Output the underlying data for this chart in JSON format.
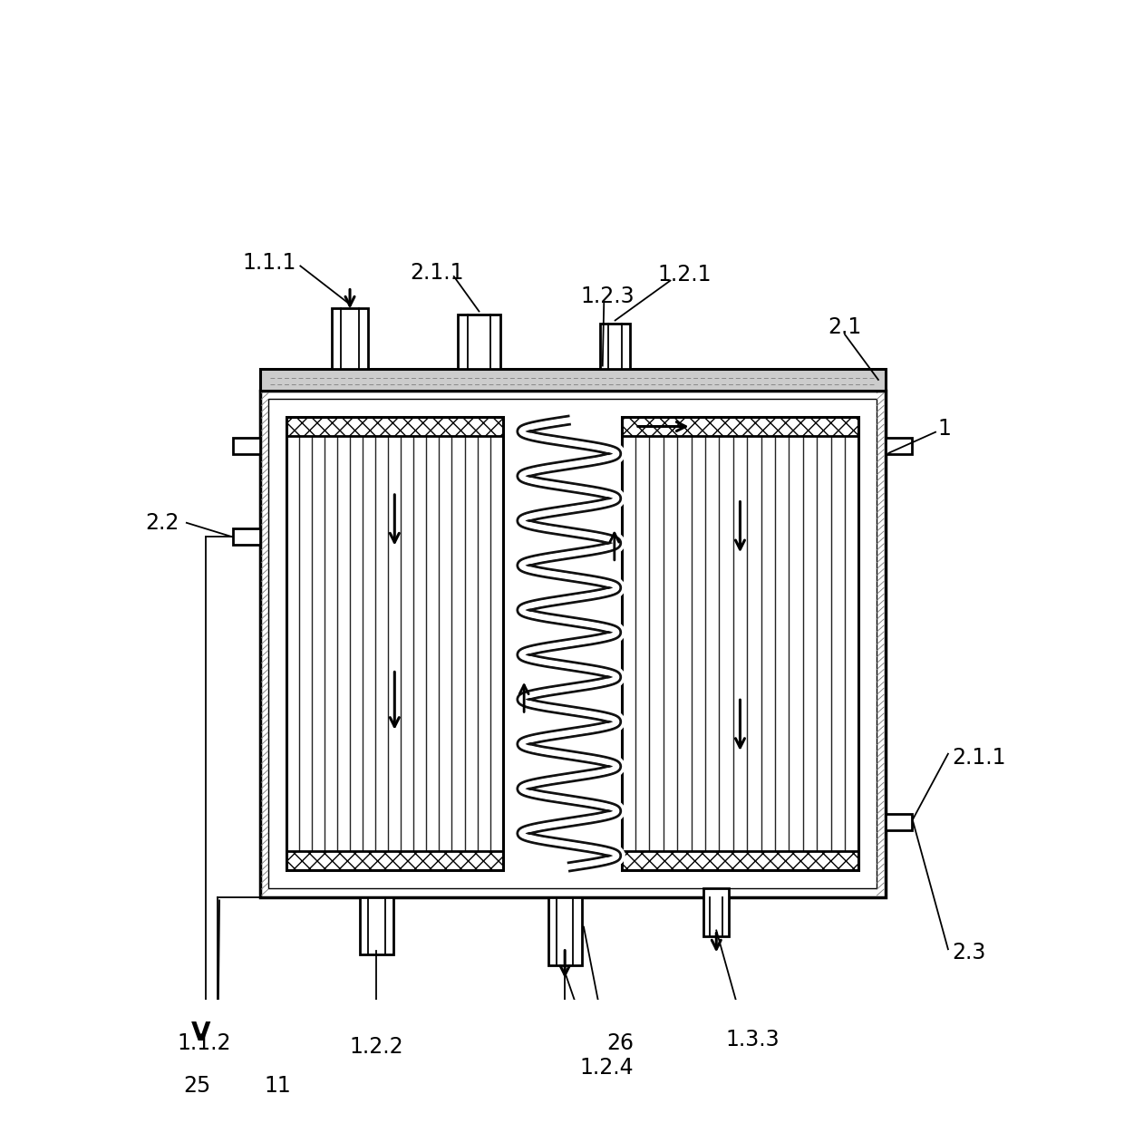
{
  "bg": "#ffffff",
  "lc": "#000000",
  "fig_w": 12.4,
  "fig_h": 12.39,
  "labels": {
    "1_1_1": "1.1.1",
    "2_1_1_t": "2.1.1",
    "1_2_1": "1.2.1",
    "1_2_3": "1.2.3",
    "2_1": "2.1",
    "1": "1",
    "2_2": "2.2",
    "1_1_2": "1.1.2",
    "1_2_2": "1.2.2",
    "26": "26",
    "1_3_3": "1.3.3",
    "2_3": "2.3",
    "2_1_1_b": "2.1.1",
    "1_2_4": "1.2.4",
    "25": "25",
    "11": "11",
    "V": "V"
  }
}
